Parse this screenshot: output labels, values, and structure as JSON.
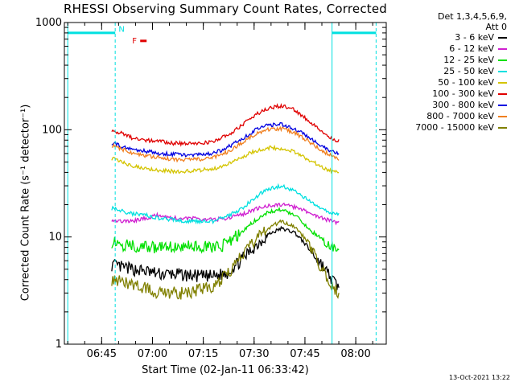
{
  "chart_data": {
    "type": "line",
    "title": "RHESSI Observing Summary Count Rates, Corrected",
    "xlabel": "Start Time (02-Jan-11 06:33:42)",
    "ylabel": "Corrected Count Rate (s⁻¹ detector⁻¹)",
    "yscale": "log",
    "ylim": [
      1,
      1000
    ],
    "xlim": [
      "06:34",
      "08:09"
    ],
    "ytick_labels": [
      "1",
      "10",
      "100",
      "1000"
    ],
    "xtick_labels": [
      "06:45",
      "07:00",
      "07:15",
      "07:30",
      "07:45",
      "08:00"
    ],
    "legend_header": [
      "Det 1,3,4,5,6,9,",
      "Att 0"
    ],
    "legend_position": "right",
    "x": [
      "06:48",
      "06:51",
      "06:54",
      "06:58",
      "07:02",
      "07:06",
      "07:10",
      "07:14",
      "07:18",
      "07:22",
      "07:26",
      "07:30",
      "07:34",
      "07:38",
      "07:42",
      "07:46",
      "07:50",
      "07:53",
      "07:55"
    ],
    "series": [
      {
        "name": "3 - 6 keV",
        "color": "#000000",
        "values": [
          5.5,
          5.2,
          5,
          4.8,
          4.5,
          4.5,
          4.4,
          4.3,
          4.3,
          4.6,
          6,
          8,
          10.5,
          12,
          11,
          8,
          5.5,
          4,
          3.4
        ]
      },
      {
        "name": "6 - 12 keV",
        "color": "#d020d0",
        "values": [
          14.5,
          14,
          14,
          15,
          16,
          15,
          15,
          14.7,
          14.5,
          15,
          16,
          18,
          19.5,
          20,
          19,
          17,
          15,
          14,
          13.5
        ]
      },
      {
        "name": "12 - 25 keV",
        "color": "#00e000",
        "values": [
          9,
          8.5,
          8.3,
          8,
          8,
          8.2,
          8.2,
          8,
          8,
          8.5,
          11,
          14,
          17,
          18,
          16,
          12,
          9.5,
          8,
          7.6
        ]
      },
      {
        "name": "25 - 50 keV",
        "color": "#00e0e0",
        "values": [
          18.5,
          17.5,
          16.5,
          16,
          15,
          14.5,
          14,
          14,
          14,
          15.5,
          18,
          23,
          28,
          30,
          27,
          22,
          18,
          16.5,
          16
        ]
      },
      {
        "name": "50 - 100 keV",
        "color": "#d4c400",
        "values": [
          54,
          50,
          46,
          44,
          42,
          41,
          41,
          42,
          43,
          48,
          55,
          63,
          68,
          67,
          62,
          53,
          45,
          41,
          40
        ]
      },
      {
        "name": "100 - 300 keV",
        "color": "#e00000",
        "values": [
          100,
          92,
          84,
          80,
          78,
          75,
          74,
          75,
          78,
          88,
          108,
          135,
          158,
          168,
          152,
          122,
          96,
          82,
          78
        ]
      },
      {
        "name": "300 - 800 keV",
        "color": "#0000e0",
        "values": [
          75,
          70,
          66,
          63,
          60,
          59,
          58,
          59,
          60,
          68,
          80,
          98,
          110,
          112,
          102,
          86,
          70,
          62,
          60
        ]
      },
      {
        "name": "800 - 7000 keV",
        "color": "#f08020",
        "values": [
          72,
          66,
          60,
          57,
          55,
          53,
          52,
          53,
          55,
          62,
          74,
          90,
          100,
          102,
          94,
          78,
          64,
          57,
          54
        ]
      },
      {
        "name": "7000 - 15000 keV",
        "color": "#808000",
        "values": [
          4,
          3.8,
          3.6,
          3.3,
          3,
          3,
          3,
          3.2,
          3.5,
          4.5,
          6.5,
          9,
          12,
          14,
          12.5,
          9,
          5,
          3.5,
          3
        ]
      }
    ],
    "attenuator_lines_x": [
      "06:35",
      "06:49",
      "07:53",
      "08:06"
    ],
    "attenuator_bar_y": 800,
    "flag_labels": [
      {
        "text": "N",
        "x": "06:50",
        "y": 820,
        "color": "#00e0e0"
      },
      {
        "text": "F",
        "x": "06:54",
        "y": 640,
        "color": "#e00000"
      }
    ],
    "grid": false
  },
  "footer_date": "13-Oct-2021 13:22"
}
